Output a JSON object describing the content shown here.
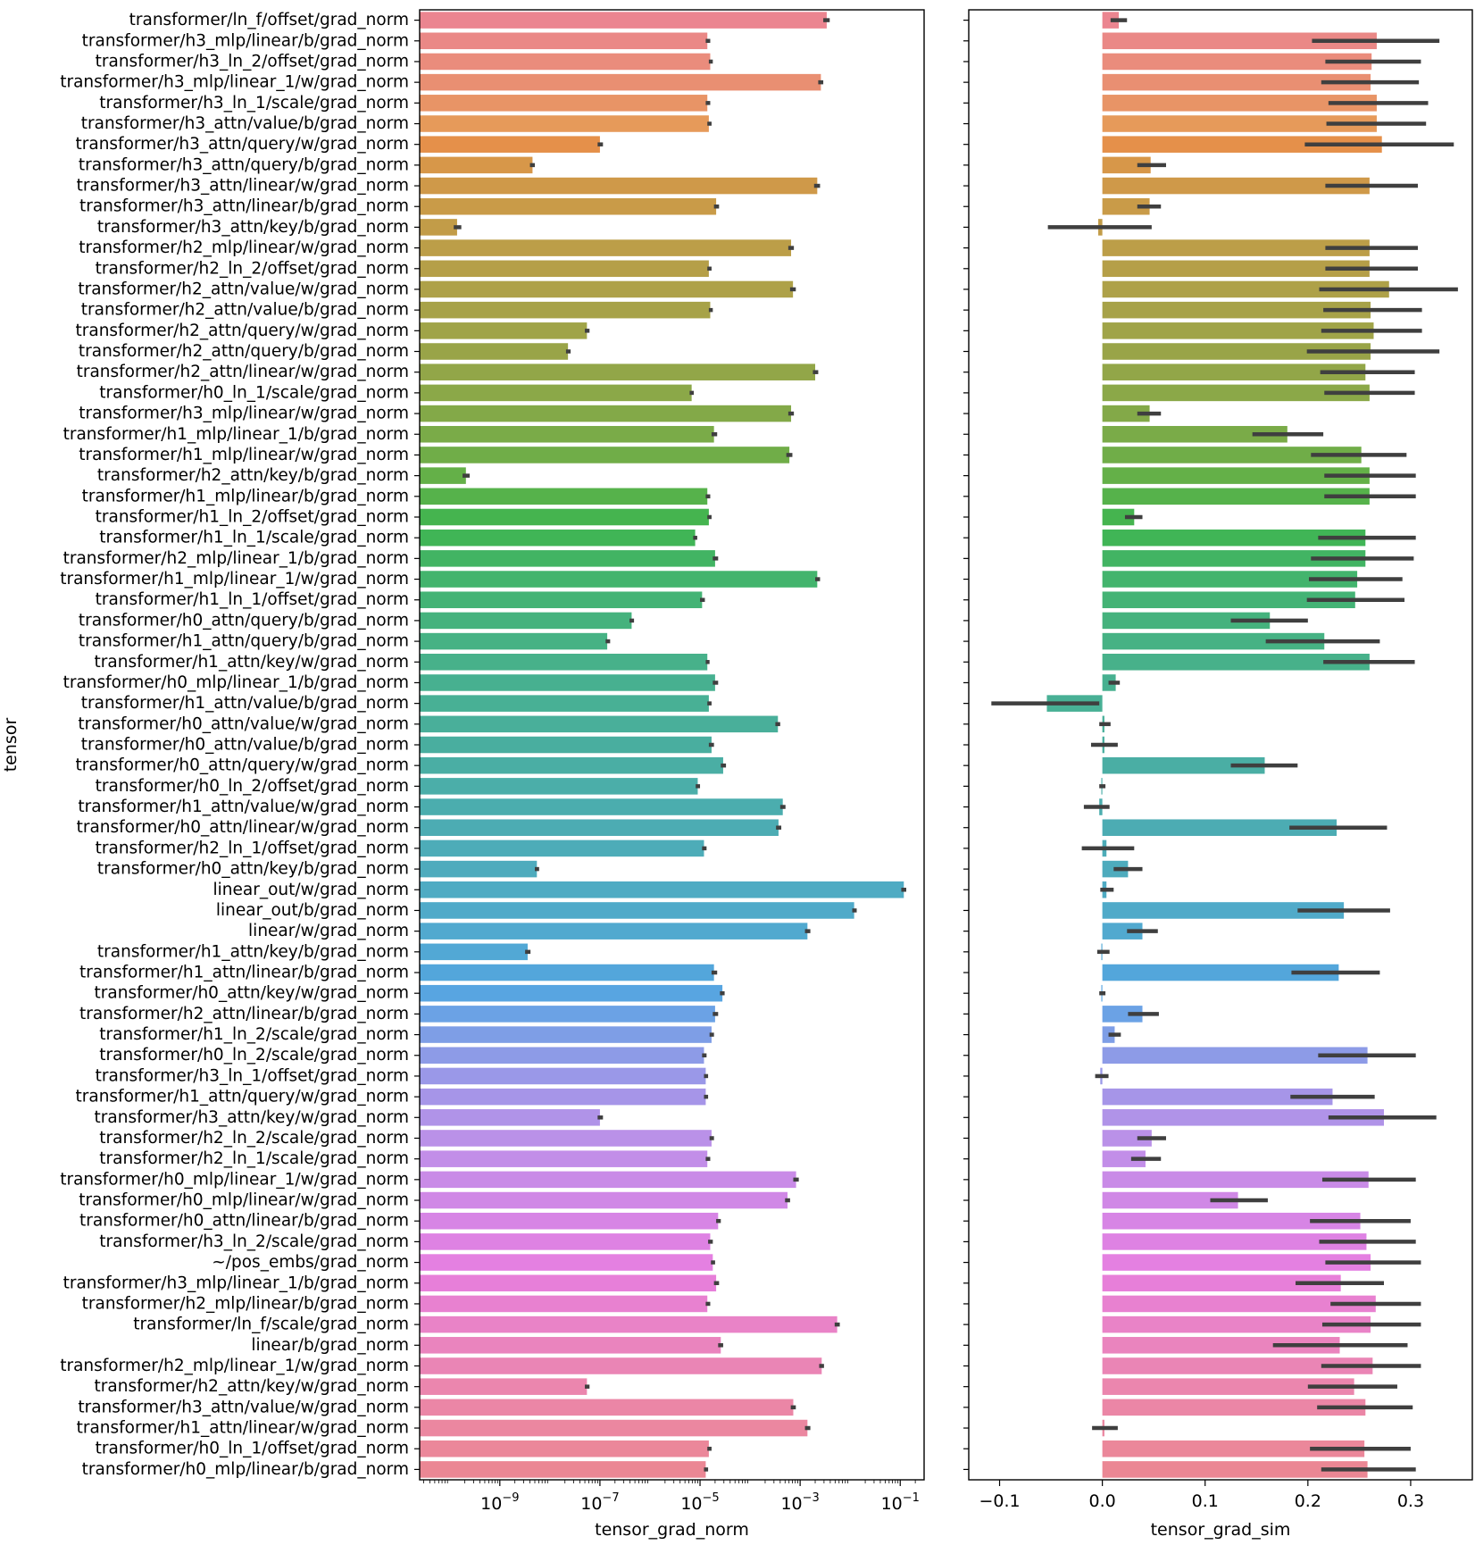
{
  "chart_data": [
    {
      "type": "bar",
      "orientation": "horizontal",
      "xlabel": "tensor_grad_norm",
      "ylabel": "tensor",
      "xscale": "log",
      "xlim": [
        2.5e-11,
        0.3
      ],
      "xticks": [
        1e-09,
        1e-07,
        1e-05,
        0.001,
        0.1
      ],
      "xtick_labels": [
        {
          "base": "10",
          "exp": "−9"
        },
        {
          "base": "10",
          "exp": "−7"
        },
        {
          "base": "10",
          "exp": "−5"
        },
        {
          "base": "10",
          "exp": "−3"
        },
        {
          "base": "10",
          "exp": "−1"
        }
      ],
      "grid": false,
      "categories": [
        "transformer/ln_f/offset/grad_norm",
        "transformer/h3_mlp/linear/b/grad_norm",
        "transformer/h3_ln_2/offset/grad_norm",
        "transformer/h3_mlp/linear_1/w/grad_norm",
        "transformer/h3_ln_1/scale/grad_norm",
        "transformer/h3_attn/value/b/grad_norm",
        "transformer/h3_attn/query/w/grad_norm",
        "transformer/h3_attn/query/b/grad_norm",
        "transformer/h3_attn/linear/w/grad_norm",
        "transformer/h3_attn/linear/b/grad_norm",
        "transformer/h3_attn/key/b/grad_norm",
        "transformer/h2_mlp/linear/w/grad_norm",
        "transformer/h2_ln_2/offset/grad_norm",
        "transformer/h2_attn/value/w/grad_norm",
        "transformer/h2_attn/value/b/grad_norm",
        "transformer/h2_attn/query/w/grad_norm",
        "transformer/h2_attn/query/b/grad_norm",
        "transformer/h2_attn/linear/w/grad_norm",
        "transformer/h0_ln_1/scale/grad_norm",
        "transformer/h3_mlp/linear/w/grad_norm",
        "transformer/h1_mlp/linear_1/b/grad_norm",
        "transformer/h1_mlp/linear/w/grad_norm",
        "transformer/h2_attn/key/b/grad_norm",
        "transformer/h1_mlp/linear/b/grad_norm",
        "transformer/h1_ln_2/offset/grad_norm",
        "transformer/h1_ln_1/scale/grad_norm",
        "transformer/h2_mlp/linear_1/b/grad_norm",
        "transformer/h1_mlp/linear_1/w/grad_norm",
        "transformer/h1_ln_1/offset/grad_norm",
        "transformer/h0_attn/query/b/grad_norm",
        "transformer/h1_attn/query/b/grad_norm",
        "transformer/h1_attn/key/w/grad_norm",
        "transformer/h0_mlp/linear_1/b/grad_norm",
        "transformer/h1_attn/value/b/grad_norm",
        "transformer/h0_attn/value/w/grad_norm",
        "transformer/h0_attn/value/b/grad_norm",
        "transformer/h0_attn/query/w/grad_norm",
        "transformer/h0_ln_2/offset/grad_norm",
        "transformer/h1_attn/value/w/grad_norm",
        "transformer/h0_attn/linear/w/grad_norm",
        "transformer/h2_ln_1/offset/grad_norm",
        "transformer/h0_attn/key/b/grad_norm",
        "linear_out/w/grad_norm",
        "linear_out/b/grad_norm",
        "linear/w/grad_norm",
        "transformer/h1_attn/key/b/grad_norm",
        "transformer/h1_attn/linear/b/grad_norm",
        "transformer/h0_attn/key/w/grad_norm",
        "transformer/h2_attn/linear/b/grad_norm",
        "transformer/h1_ln_2/scale/grad_norm",
        "transformer/h0_ln_2/scale/grad_norm",
        "transformer/h3_ln_1/offset/grad_norm",
        "transformer/h1_attn/query/w/grad_norm",
        "transformer/h3_attn/key/w/grad_norm",
        "transformer/h2_ln_2/scale/grad_norm",
        "transformer/h2_ln_1/scale/grad_norm",
        "transformer/h0_mlp/linear_1/w/grad_norm",
        "transformer/h0_mlp/linear/w/grad_norm",
        "transformer/h0_attn/linear/b/grad_norm",
        "transformer/h3_ln_2/scale/grad_norm",
        "~/pos_embs/grad_norm",
        "transformer/h3_mlp/linear_1/b/grad_norm",
        "transformer/h2_mlp/linear/b/grad_norm",
        "transformer/ln_f/scale/grad_norm",
        "linear/b/grad_norm",
        "transformer/h2_mlp/linear_1/w/grad_norm",
        "transformer/h2_attn/key/w/grad_norm",
        "transformer/h3_attn/value/w/grad_norm",
        "transformer/h1_attn/linear/w/grad_norm",
        "transformer/h0_ln_1/offset/grad_norm",
        "transformer/h0_mlp/linear/b/grad_norm"
      ],
      "values": [
        0.0034,
        1.4e-05,
        1.6e-05,
        0.0026,
        1.4e-05,
        1.5e-05,
        1e-07,
        4.5e-09,
        0.0022,
        2.1e-05,
        1.4e-10,
        0.00066,
        1.5e-05,
        0.00072,
        1.6e-05,
        5.5e-08,
        2.3e-08,
        0.002,
        6.8e-06,
        0.00066,
        1.9e-05,
        0.00061,
        2.1e-10,
        1.4e-05,
        1.5e-05,
        8e-06,
        2e-05,
        0.0022,
        1.1e-05,
        4.3e-07,
        1.4e-07,
        1.4e-05,
        2e-05,
        1.5e-05,
        0.00036,
        1.7e-05,
        2.9e-05,
        9e-06,
        0.00045,
        0.00037,
        1.2e-05,
        5.5e-09,
        0.118,
        0.012,
        0.0014,
        3.6e-09,
        1.9e-05,
        2.8e-05,
        2e-05,
        1.7e-05,
        1.2e-05,
        1.3e-05,
        1.3e-05,
        1e-07,
        1.7e-05,
        1.4e-05,
        0.00083,
        0.00056,
        2.3e-05,
        1.6e-05,
        1.8e-05,
        2.1e-05,
        1.4e-05,
        0.0055,
        2.6e-05,
        0.0027,
        5.5e-08,
        0.00073,
        0.0014,
        1.5e-05,
        1.3e-05
      ],
      "errors": [
        [
          0.0029,
          0.0039
        ],
        [
          1.3e-05,
          1.6e-05
        ],
        [
          1.5e-05,
          1.8e-05
        ],
        [
          0.0023,
          0.0029
        ],
        [
          1.3e-05,
          1.6e-05
        ],
        [
          1.4e-05,
          1.7e-05
        ],
        [
          9e-08,
          1.15e-07
        ],
        [
          4e-09,
          5e-09
        ],
        [
          0.0019,
          0.0025
        ],
        [
          1.9e-05,
          2.4e-05
        ],
        [
          1.2e-10,
          1.7e-10
        ],
        [
          0.00058,
          0.00075
        ],
        [
          1.4e-05,
          1.7e-05
        ],
        [
          0.00063,
          0.00082
        ],
        [
          1.5e-05,
          1.8e-05
        ],
        [
          5e-08,
          6.2e-08
        ],
        [
          2.1e-08,
          2.6e-08
        ],
        [
          0.0018,
          0.0023
        ],
        [
          6.2e-06,
          7.5e-06
        ],
        [
          0.00058,
          0.00075
        ],
        [
          1.7e-05,
          2.2e-05
        ],
        [
          0.00053,
          0.0007
        ],
        [
          1.8e-10,
          2.5e-10
        ],
        [
          1.3e-05,
          1.6e-05
        ],
        [
          1.4e-05,
          1.7e-05
        ],
        [
          7.3e-06,
          8.8e-06
        ],
        [
          1.8e-05,
          2.3e-05
        ],
        [
          0.002,
          0.0025
        ],
        [
          1e-05,
          1.25e-05
        ],
        [
          3.9e-07,
          4.8e-07
        ],
        [
          1.3e-07,
          1.6e-07
        ],
        [
          1.3e-05,
          1.55e-05
        ],
        [
          1.8e-05,
          2.3e-05
        ],
        [
          1.4e-05,
          1.7e-05
        ],
        [
          0.00032,
          0.0004
        ],
        [
          1.5e-05,
          1.9e-05
        ],
        [
          2.6e-05,
          3.3e-05
        ],
        [
          8.2e-06,
          1e-05
        ],
        [
          0.0004,
          0.00051
        ],
        [
          0.00033,
          0.00042
        ],
        [
          1.1e-05,
          1.35e-05
        ],
        [
          5e-09,
          6.1e-09
        ],
        [
          0.105,
          0.132
        ],
        [
          0.011,
          0.0135
        ],
        [
          0.00125,
          0.0016
        ],
        [
          3.2e-09,
          4.1e-09
        ],
        [
          1.7e-05,
          2.2e-05
        ],
        [
          2.5e-05,
          3.1e-05
        ],
        [
          1.8e-05,
          2.3e-05
        ],
        [
          1.55e-05,
          1.9e-05
        ],
        [
          1.1e-05,
          1.35e-05
        ],
        [
          1.2e-05,
          1.45e-05
        ],
        [
          1.2e-05,
          1.45e-05
        ],
        [
          9e-08,
          1.15e-07
        ],
        [
          1.55e-05,
          1.9e-05
        ],
        [
          1.3e-05,
          1.6e-05
        ],
        [
          0.00073,
          0.00094
        ],
        [
          0.0005,
          0.00063
        ],
        [
          2.1e-05,
          2.6e-05
        ],
        [
          1.45e-05,
          1.8e-05
        ],
        [
          1.65e-05,
          2e-05
        ],
        [
          1.9e-05,
          2.4e-05
        ],
        [
          1.3e-05,
          1.6e-05
        ],
        [
          0.0049,
          0.0062
        ],
        [
          2.3e-05,
          2.9e-05
        ],
        [
          0.0024,
          0.003
        ],
        [
          5e-08,
          6.2e-08
        ],
        [
          0.00065,
          0.00082
        ],
        [
          0.00125,
          0.0016
        ],
        [
          1.4e-05,
          1.7e-05
        ],
        [
          1.2e-05,
          1.45e-05
        ]
      ],
      "colors": [
        "#eb8590",
        "#ea8886",
        "#ea8c7c",
        "#e98f72",
        "#e89466",
        "#e69a5a",
        "#e5904a",
        "#d79749",
        "#cf9949",
        "#c99b48",
        "#c29c48",
        "#bc9e48",
        "#b59f48",
        "#aea148",
        "#a7a248",
        "#a0a448",
        "#99a448",
        "#92a648",
        "#8ba848",
        "#83a948",
        "#7aab48",
        "#70ad48",
        "#64b048",
        "#56b24b",
        "#45b44f",
        "#40b556",
        "#42b463",
        "#43b46d",
        "#44b375",
        "#45b27d",
        "#46b284",
        "#47b18a",
        "#47b090",
        "#48b095",
        "#49af9a",
        "#49ae9f",
        "#4aaea4",
        "#4baea9",
        "#4badae",
        "#4cacb3",
        "#4dacb8",
        "#4eabbd",
        "#4fabc3",
        "#50aac9",
        "#51a9cf",
        "#52a8d5",
        "#53a6db",
        "#58a5e1",
        "#6ba2e5",
        "#7e9ee6",
        "#8d9be7",
        "#9a98e8",
        "#a695e8",
        "#b093e8",
        "#ba91e8",
        "#c28ee8",
        "#c98be7",
        "#d088e6",
        "#d785e5",
        "#de82e3",
        "#e480e1",
        "#e77fd9",
        "#e881d0",
        "#e983c7",
        "#ea84be",
        "#ea85b5",
        "#eb86ae",
        "#eb86a6",
        "#eb87a0",
        "#eb879a",
        "#eb8794"
      ]
    },
    {
      "type": "bar",
      "orientation": "horizontal",
      "xlabel": "tensor_grad_sim",
      "ylabel": "",
      "xlim": [
        -0.13,
        0.36
      ],
      "xticks": [
        -0.1,
        0.0,
        0.1,
        0.2,
        0.3
      ],
      "xtick_labels": [
        "−0.1",
        "0.0",
        "0.1",
        "0.2",
        "0.3"
      ],
      "grid": false,
      "values": [
        0.016,
        0.267,
        0.262,
        0.261,
        0.267,
        0.267,
        0.272,
        0.047,
        0.26,
        0.046,
        -0.004,
        0.26,
        0.26,
        0.279,
        0.261,
        0.264,
        0.261,
        0.256,
        0.26,
        0.046,
        0.18,
        0.252,
        0.26,
        0.26,
        0.031,
        0.256,
        0.256,
        0.248,
        0.246,
        0.163,
        0.216,
        0.26,
        0.013,
        -0.054,
        0.002,
        0.002,
        0.158,
        -0.001,
        -0.003,
        0.228,
        0.004,
        0.025,
        0.004,
        0.235,
        0.039,
        -0.001,
        0.23,
        -0.001,
        0.039,
        0.012,
        0.258,
        -0.002,
        0.224,
        0.274,
        0.048,
        0.042,
        0.259,
        0.132,
        0.251,
        0.257,
        0.261,
        0.232,
        0.266,
        0.261,
        0.231,
        0.263,
        0.245,
        0.256,
        0.002,
        0.255,
        0.258
      ],
      "errors": [
        [
          0.008,
          0.024
        ],
        [
          0.204,
          0.328
        ],
        [
          0.217,
          0.31
        ],
        [
          0.213,
          0.308
        ],
        [
          0.22,
          0.317
        ],
        [
          0.218,
          0.315
        ],
        [
          0.197,
          0.342
        ],
        [
          0.034,
          0.062
        ],
        [
          0.217,
          0.307
        ],
        [
          0.034,
          0.057
        ],
        [
          -0.053,
          0.048
        ],
        [
          0.217,
          0.307
        ],
        [
          0.217,
          0.307
        ],
        [
          0.211,
          0.346
        ],
        [
          0.215,
          0.311
        ],
        [
          0.213,
          0.311
        ],
        [
          0.199,
          0.328
        ],
        [
          0.212,
          0.304
        ],
        [
          0.216,
          0.304
        ],
        [
          0.034,
          0.057
        ],
        [
          0.146,
          0.215
        ],
        [
          0.203,
          0.296
        ],
        [
          0.216,
          0.305
        ],
        [
          0.216,
          0.305
        ],
        [
          0.022,
          0.039
        ],
        [
          0.21,
          0.305
        ],
        [
          0.203,
          0.303
        ],
        [
          0.201,
          0.292
        ],
        [
          0.199,
          0.294
        ],
        [
          0.125,
          0.2
        ],
        [
          0.159,
          0.27
        ],
        [
          0.215,
          0.304
        ],
        [
          0.006,
          0.017
        ],
        [
          -0.108,
          -0.003
        ],
        [
          -0.003,
          0.008
        ],
        [
          -0.011,
          0.015
        ],
        [
          0.125,
          0.19
        ],
        [
          -0.003,
          0.003
        ],
        [
          -0.018,
          0.007
        ],
        [
          0.182,
          0.277
        ],
        [
          -0.02,
          0.031
        ],
        [
          0.011,
          0.039
        ],
        [
          -0.002,
          0.011
        ],
        [
          0.19,
          0.28
        ],
        [
          0.024,
          0.054
        ],
        [
          -0.005,
          0.007
        ],
        [
          0.184,
          0.27
        ],
        [
          -0.003,
          0.003
        ],
        [
          0.025,
          0.055
        ],
        [
          0.006,
          0.018
        ],
        [
          0.21,
          0.305
        ],
        [
          -0.007,
          0.006
        ],
        [
          0.183,
          0.265
        ],
        [
          0.22,
          0.325
        ],
        [
          0.034,
          0.062
        ],
        [
          0.028,
          0.057
        ],
        [
          0.214,
          0.305
        ],
        [
          0.105,
          0.161
        ],
        [
          0.202,
          0.3
        ],
        [
          0.211,
          0.305
        ],
        [
          0.217,
          0.31
        ],
        [
          0.188,
          0.274
        ],
        [
          0.222,
          0.31
        ],
        [
          0.214,
          0.31
        ],
        [
          0.166,
          0.297
        ],
        [
          0.213,
          0.31
        ],
        [
          0.2,
          0.287
        ],
        [
          0.209,
          0.302
        ],
        [
          -0.01,
          0.015
        ],
        [
          0.202,
          0.3
        ],
        [
          0.213,
          0.305
        ]
      ]
    }
  ]
}
